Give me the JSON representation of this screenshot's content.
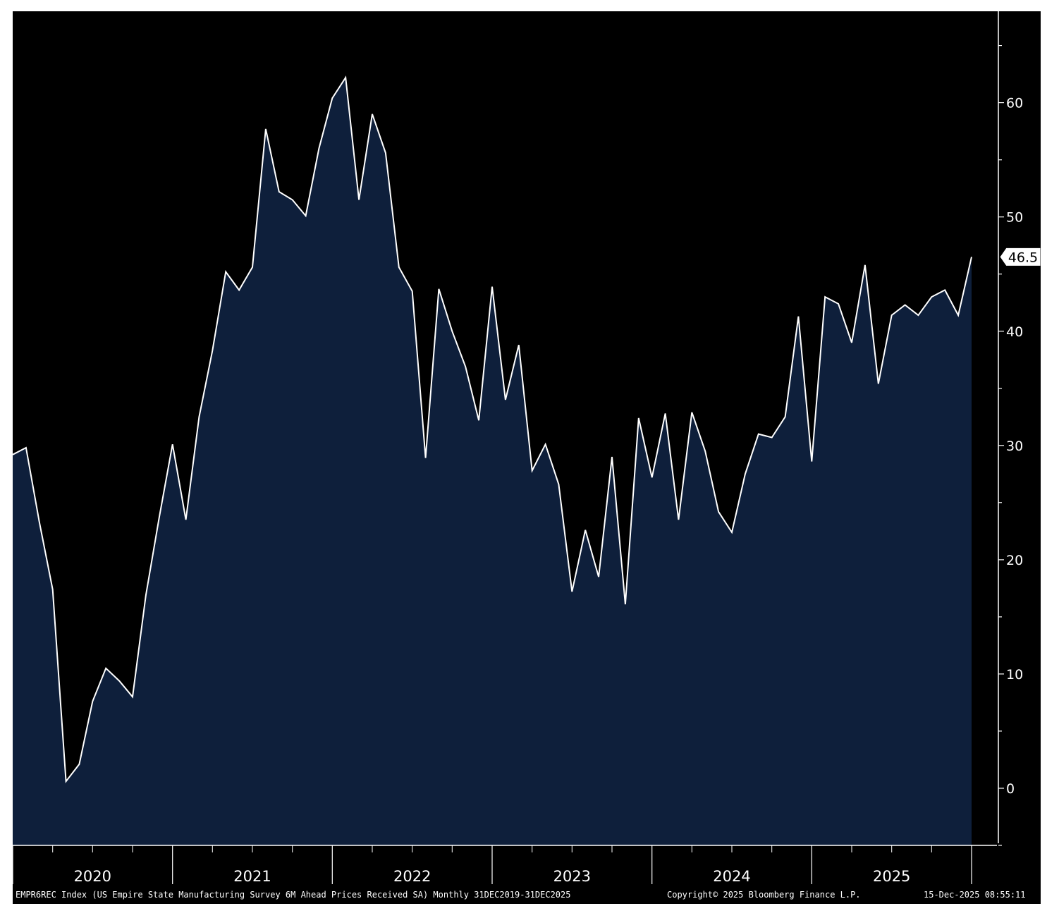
{
  "colors": {
    "background": "#000000",
    "area_fill": "#0e1f3b",
    "line": "#ffffff",
    "axis": "#ffffff"
  },
  "footer": {
    "description": "EMPR6REC Index (US Empire State Manufacturing Survey 6M Ahead Prices Received SA) Monthly 31DEC2019-31DEC2025",
    "copyright": "Copyright© 2025 Bloomberg Finance L.P.",
    "timestamp": "15-Dec-2025 08:55:11"
  },
  "chart_data": {
    "type": "area",
    "title": "",
    "xlabel": "",
    "ylabel": "",
    "y_axis_position": "right",
    "grid": false,
    "ylim": [
      -5,
      68
    ],
    "xlim": [
      "2019-12",
      "2025-12"
    ],
    "yticks": [
      0,
      10,
      20,
      30,
      40,
      50,
      60
    ],
    "year_labels": [
      "2020",
      "2021",
      "2022",
      "2023",
      "2024",
      "2025"
    ],
    "last_value_label": "46.5",
    "series": [
      {
        "x": [
          "2019-12",
          "2020-01",
          "2020-02",
          "2020-03",
          "2020-04",
          "2020-05",
          "2020-06",
          "2020-07",
          "2020-08",
          "2020-09",
          "2020-10",
          "2020-11",
          "2020-12",
          "2021-01",
          "2021-02",
          "2021-03",
          "2021-04",
          "2021-05",
          "2021-06",
          "2021-07",
          "2021-08",
          "2021-09",
          "2021-10",
          "2021-11",
          "2021-12",
          "2022-01",
          "2022-02",
          "2022-03",
          "2022-04",
          "2022-05",
          "2022-06",
          "2022-07",
          "2022-08",
          "2022-09",
          "2022-10",
          "2022-11",
          "2022-12",
          "2023-01",
          "2023-02",
          "2023-03",
          "2023-04",
          "2023-05",
          "2023-06",
          "2023-07",
          "2023-08",
          "2023-09",
          "2023-10",
          "2023-11",
          "2023-12",
          "2024-01",
          "2024-02",
          "2024-03",
          "2024-04",
          "2024-05",
          "2024-06",
          "2024-07",
          "2024-08",
          "2024-09",
          "2024-10",
          "2024-11",
          "2024-12",
          "2025-01",
          "2025-02",
          "2025-03",
          "2025-04",
          "2025-05",
          "2025-06",
          "2025-07",
          "2025-08",
          "2025-09",
          "2025-10",
          "2025-11",
          "2025-12"
        ],
        "values": [
          29.2,
          29.8,
          23.3,
          17.4,
          0.6,
          2.1,
          7.6,
          10.5,
          9.4,
          8.0,
          16.9,
          23.7,
          30.1,
          23.5,
          32.5,
          38.3,
          45.2,
          43.6,
          45.6,
          57.7,
          52.2,
          51.5,
          50.1,
          56.0,
          60.4,
          62.2,
          51.5,
          59.0,
          55.6,
          45.6,
          43.5,
          28.9,
          43.7,
          40.0,
          36.9,
          32.2,
          43.9,
          34.0,
          38.8,
          27.8,
          30.1,
          26.6,
          17.2,
          22.6,
          18.5,
          29.0,
          16.1,
          32.4,
          27.2,
          32.8,
          23.5,
          32.9,
          29.5,
          24.2,
          22.4,
          27.5,
          31.0,
          30.7,
          32.5,
          41.3,
          28.6,
          43.0,
          42.4,
          39.0,
          45.8,
          35.4,
          41.4,
          42.3,
          41.4,
          43.0,
          43.6,
          41.4,
          46.5
        ]
      }
    ]
  }
}
